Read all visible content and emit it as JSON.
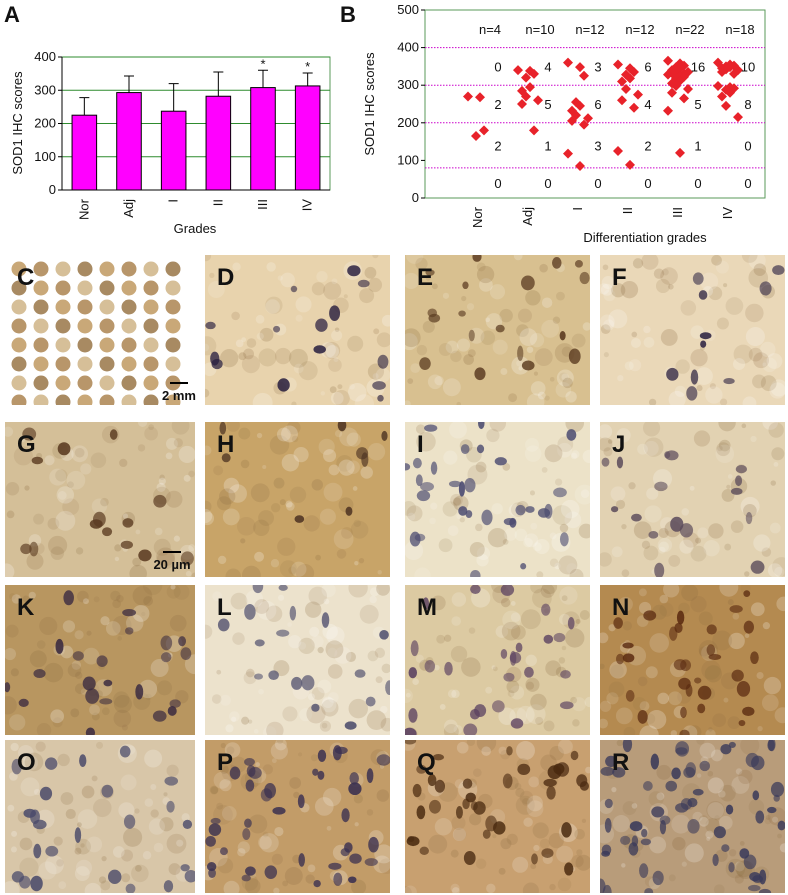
{
  "chart_data": [
    {
      "type": "bar",
      "panel": "A",
      "categories": [
        "Nor",
        "Adj",
        "I",
        "II",
        "III",
        "IV"
      ],
      "values": [
        225,
        293,
        237,
        282,
        308,
        313
      ],
      "errors": [
        53,
        50,
        83,
        73,
        52,
        39
      ],
      "significance": [
        null,
        null,
        null,
        null,
        "*",
        "*"
      ],
      "color": "#ff00ff",
      "grid": true,
      "ylim": [
        0,
        400
      ],
      "yticks": [
        0,
        100,
        200,
        300,
        400
      ],
      "xlabel": "Grades",
      "ylabel": "SOD1 IHC scores"
    },
    {
      "type": "scatter",
      "panel": "B",
      "categories": [
        "Nor",
        "Adj",
        "I",
        "II",
        "III",
        "IV"
      ],
      "group_sizes": [
        "n=4",
        "n=10",
        "n=12",
        "n=12",
        "n=22",
        "n=18"
      ],
      "values": [
        [
          270,
          268,
          180,
          165
        ],
        [
          340,
          338,
          330,
          320,
          295,
          285,
          270,
          260,
          250,
          180
        ],
        [
          360,
          348,
          325,
          255,
          245,
          232,
          220,
          212,
          205,
          195,
          118,
          85
        ],
        [
          355,
          345,
          335,
          328,
          318,
          310,
          290,
          275,
          260,
          240,
          125,
          88
        ],
        [
          365,
          358,
          352,
          348,
          345,
          340,
          338,
          335,
          332,
          330,
          328,
          325,
          322,
          318,
          312,
          305,
          298,
          290,
          280,
          265,
          232,
          120
        ],
        [
          360,
          355,
          352,
          350,
          348,
          345,
          342,
          340,
          335,
          330,
          298,
          295,
          292,
          288,
          280,
          270,
          245,
          215
        ]
      ],
      "band_counts": [
        [
          0,
          2,
          2,
          0
        ],
        [
          4,
          5,
          1,
          0
        ],
        [
          3,
          6,
          3,
          0
        ],
        [
          6,
          4,
          2,
          0
        ],
        [
          16,
          5,
          1,
          0
        ],
        [
          10,
          8,
          0,
          0
        ]
      ],
      "threshold_lines": [
        80,
        200,
        300,
        400
      ],
      "threshold_color": "#cc00cc",
      "color": "#e8222a",
      "ylim": [
        0,
        500
      ],
      "yticks": [
        0,
        100,
        200,
        300,
        400,
        500
      ],
      "xlabel": "Differentiation grades",
      "ylabel": "SOD1 IHC scores"
    }
  ],
  "image_panels": [
    {
      "label": "C",
      "scale_bar": "2 mm"
    },
    {
      "label": "D"
    },
    {
      "label": "E"
    },
    {
      "label": "F"
    },
    {
      "label": "G",
      "scale_bar": "20 µm"
    },
    {
      "label": "H"
    },
    {
      "label": "I"
    },
    {
      "label": "J"
    },
    {
      "label": "K"
    },
    {
      "label": "L"
    },
    {
      "label": "M"
    },
    {
      "label": "N"
    },
    {
      "label": "O"
    },
    {
      "label": "P"
    },
    {
      "label": "Q"
    },
    {
      "label": "R"
    }
  ]
}
